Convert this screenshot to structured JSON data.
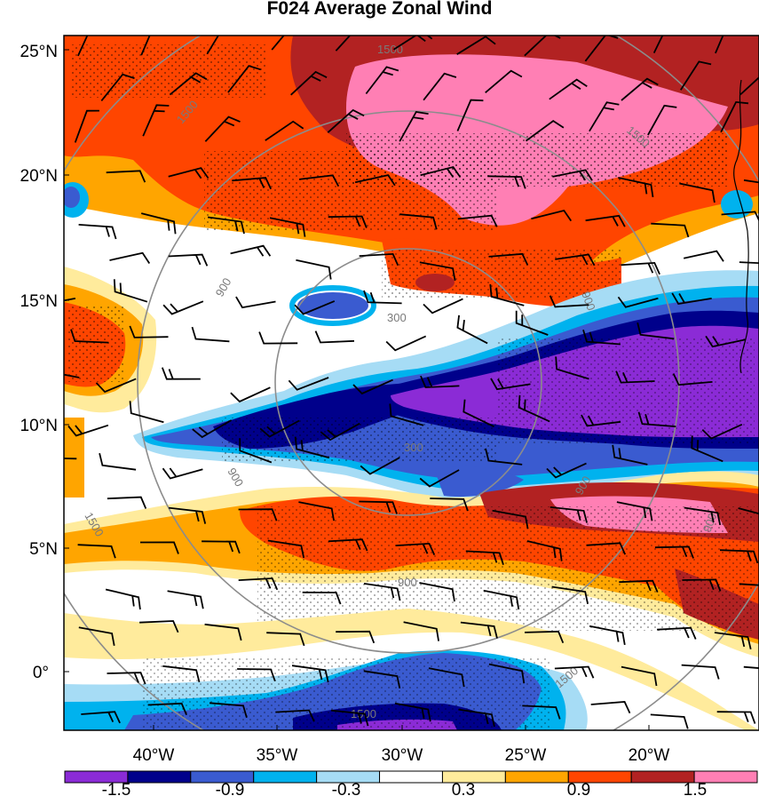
{
  "title": "F024 Average Zonal Wind",
  "map": {
    "lat_labels": [
      "25°N",
      "20°N",
      "15°N",
      "10°N",
      "5°N",
      "0°"
    ],
    "lon_labels": [
      "40°W",
      "35°W",
      "30°W",
      "25°W",
      "20°W"
    ],
    "range_rings": [
      {
        "label": "300"
      },
      {
        "label": "900"
      },
      {
        "label": "1500"
      }
    ],
    "ring_labels": [
      "1500",
      "1500",
      "1500",
      "1500",
      "1500",
      "1500",
      "900",
      "900",
      "900",
      "900",
      "900",
      "300",
      "300",
      "900"
    ],
    "features": [
      "filled-contours",
      "stippling",
      "wind-barbs",
      "range-rings",
      "coastline"
    ]
  },
  "colorbar": {
    "tick_labels": [
      "-1.5",
      "-0.9",
      "-0.3",
      "0.3",
      "0.9",
      "1.5"
    ],
    "colors": [
      "#8b2bd6",
      "#00008b",
      "#3a5bd0",
      "#00b2ee",
      "#a6dcf5",
      "#ffffff",
      "#ffeb9c",
      "#ffa500",
      "#ff4500",
      "#b22222",
      "#ff7fb4"
    ]
  }
}
